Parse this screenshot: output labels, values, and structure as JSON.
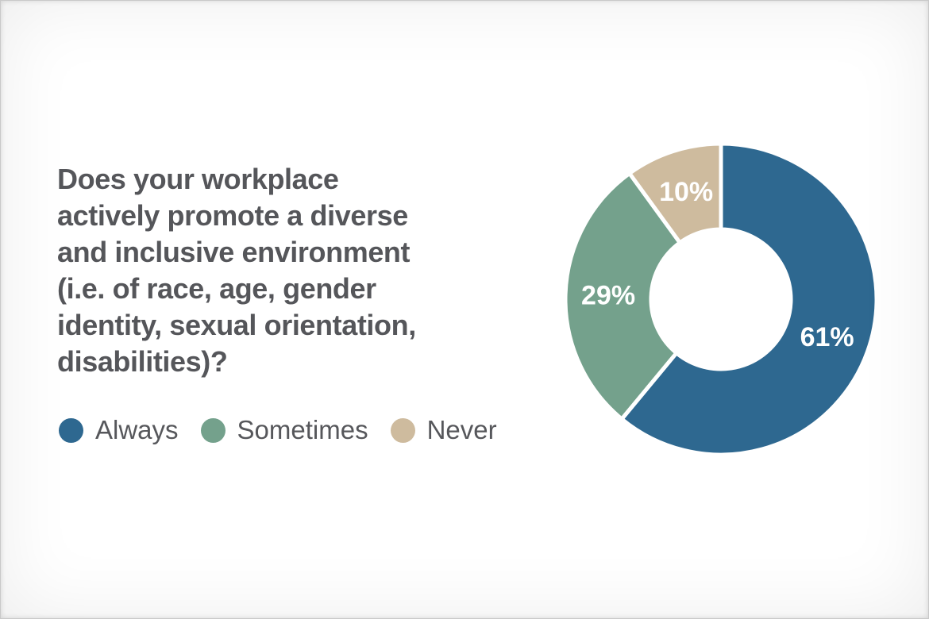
{
  "page": {
    "background_color": "#ffffff",
    "text_color": "#55565a"
  },
  "question": {
    "text": "Does your workplace actively promote a diverse and inclusive environment (i.e. of race, age, gender identity, sexual orientation, disabilities)?",
    "lines": [
      "Does your workplace",
      "actively promote a diverse",
      "and inclusive environment",
      "(i.e. of race, age, gender",
      "identity, sexual orientation,",
      "disabilities)?"
    ]
  },
  "legend": {
    "items": [
      {
        "label": "Always",
        "color": "#2e6890"
      },
      {
        "label": "Sometimes",
        "color": "#74a18c"
      },
      {
        "label": "Never",
        "color": "#cebb9e"
      }
    ]
  },
  "chart_data": {
    "type": "pie",
    "variant": "donut",
    "title": "Does your workplace actively promote a diverse and inclusive environment (i.e. of race, age, gender identity, sexual orientation, disabilities)?",
    "categories": [
      "Always",
      "Sometimes",
      "Never"
    ],
    "values": [
      61,
      29,
      10
    ],
    "unit": "%",
    "labels": [
      "61%",
      "29%",
      "10%"
    ],
    "colors": [
      "#2e6890",
      "#74a18c",
      "#cebb9e"
    ],
    "start_angle_deg": 0,
    "direction": "clockwise",
    "inner_radius_ratio": 0.45,
    "slice_gap_color": "#ffffff",
    "label_color": "#ffffff",
    "legend_position": "bottom-left",
    "grid": false
  }
}
